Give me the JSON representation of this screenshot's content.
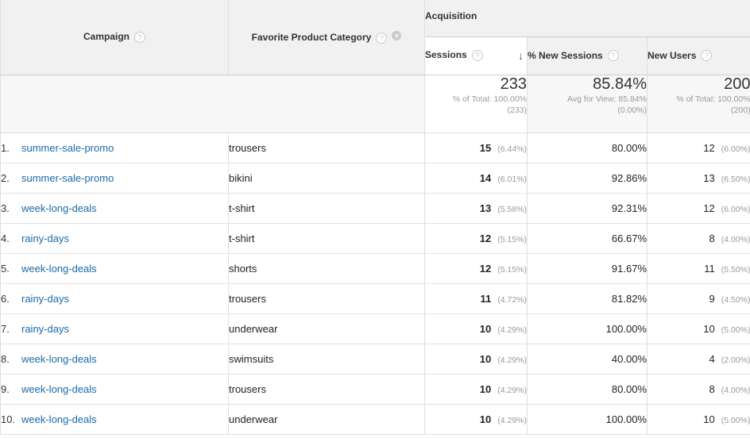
{
  "header": {
    "campaign_label": "Campaign",
    "favorite_label": "Favorite Product Category",
    "acquisition_label": "Acquisition",
    "help_glyph": "?",
    "close_glyph": "×",
    "sort_glyph": "↓",
    "metrics": {
      "sessions": "Sessions",
      "new_sessions": "% New Sessions",
      "new_users": "New Users"
    }
  },
  "totals": {
    "sessions": {
      "value": "233",
      "line1": "% of Total: 100.00%",
      "line2": "(233)"
    },
    "new_sessions": {
      "value": "85.84%",
      "line1": "Avg for View: 85.84%",
      "line2": "(0.00%)"
    },
    "new_users": {
      "value": "200",
      "line1": "% of Total: 100.00%",
      "line2": "(200)"
    }
  },
  "rows": [
    {
      "num": "1.",
      "campaign": "summer-sale-promo",
      "category": "trousers",
      "sessions": "15",
      "sessions_pct": "(6.44%)",
      "new_sessions": "80.00%",
      "new_users": "12",
      "new_users_pct": "(6.00%)"
    },
    {
      "num": "2.",
      "campaign": "summer-sale-promo",
      "category": "bikini",
      "sessions": "14",
      "sessions_pct": "(6.01%)",
      "new_sessions": "92.86%",
      "new_users": "13",
      "new_users_pct": "(6.50%)"
    },
    {
      "num": "3.",
      "campaign": "week-long-deals",
      "category": "t-shirt",
      "sessions": "13",
      "sessions_pct": "(5.58%)",
      "new_sessions": "92.31%",
      "new_users": "12",
      "new_users_pct": "(6.00%)"
    },
    {
      "num": "4.",
      "campaign": "rainy-days",
      "category": "t-shirt",
      "sessions": "12",
      "sessions_pct": "(5.15%)",
      "new_sessions": "66.67%",
      "new_users": "8",
      "new_users_pct": "(4.00%)"
    },
    {
      "num": "5.",
      "campaign": "week-long-deals",
      "category": "shorts",
      "sessions": "12",
      "sessions_pct": "(5.15%)",
      "new_sessions": "91.67%",
      "new_users": "11",
      "new_users_pct": "(5.50%)"
    },
    {
      "num": "6.",
      "campaign": "rainy-days",
      "category": "trousers",
      "sessions": "11",
      "sessions_pct": "(4.72%)",
      "new_sessions": "81.82%",
      "new_users": "9",
      "new_users_pct": "(4.50%)"
    },
    {
      "num": "7.",
      "campaign": "rainy-days",
      "category": "underwear",
      "sessions": "10",
      "sessions_pct": "(4.29%)",
      "new_sessions": "100.00%",
      "new_users": "10",
      "new_users_pct": "(5.00%)"
    },
    {
      "num": "8.",
      "campaign": "week-long-deals",
      "category": "swimsuits",
      "sessions": "10",
      "sessions_pct": "(4.29%)",
      "new_sessions": "40.00%",
      "new_users": "4",
      "new_users_pct": "(2.00%)"
    },
    {
      "num": "9.",
      "campaign": "week-long-deals",
      "category": "trousers",
      "sessions": "10",
      "sessions_pct": "(4.29%)",
      "new_sessions": "80.00%",
      "new_users": "8",
      "new_users_pct": "(4.00%)"
    },
    {
      "num": "10.",
      "campaign": "week-long-deals",
      "category": "underwear",
      "sessions": "10",
      "sessions_pct": "(4.29%)",
      "new_sessions": "100.00%",
      "new_users": "10",
      "new_users_pct": "(5.00%)"
    }
  ],
  "colors": {
    "link": "#1a6aa8",
    "header_bg": "#f1f1f1",
    "muted": "#999999"
  }
}
